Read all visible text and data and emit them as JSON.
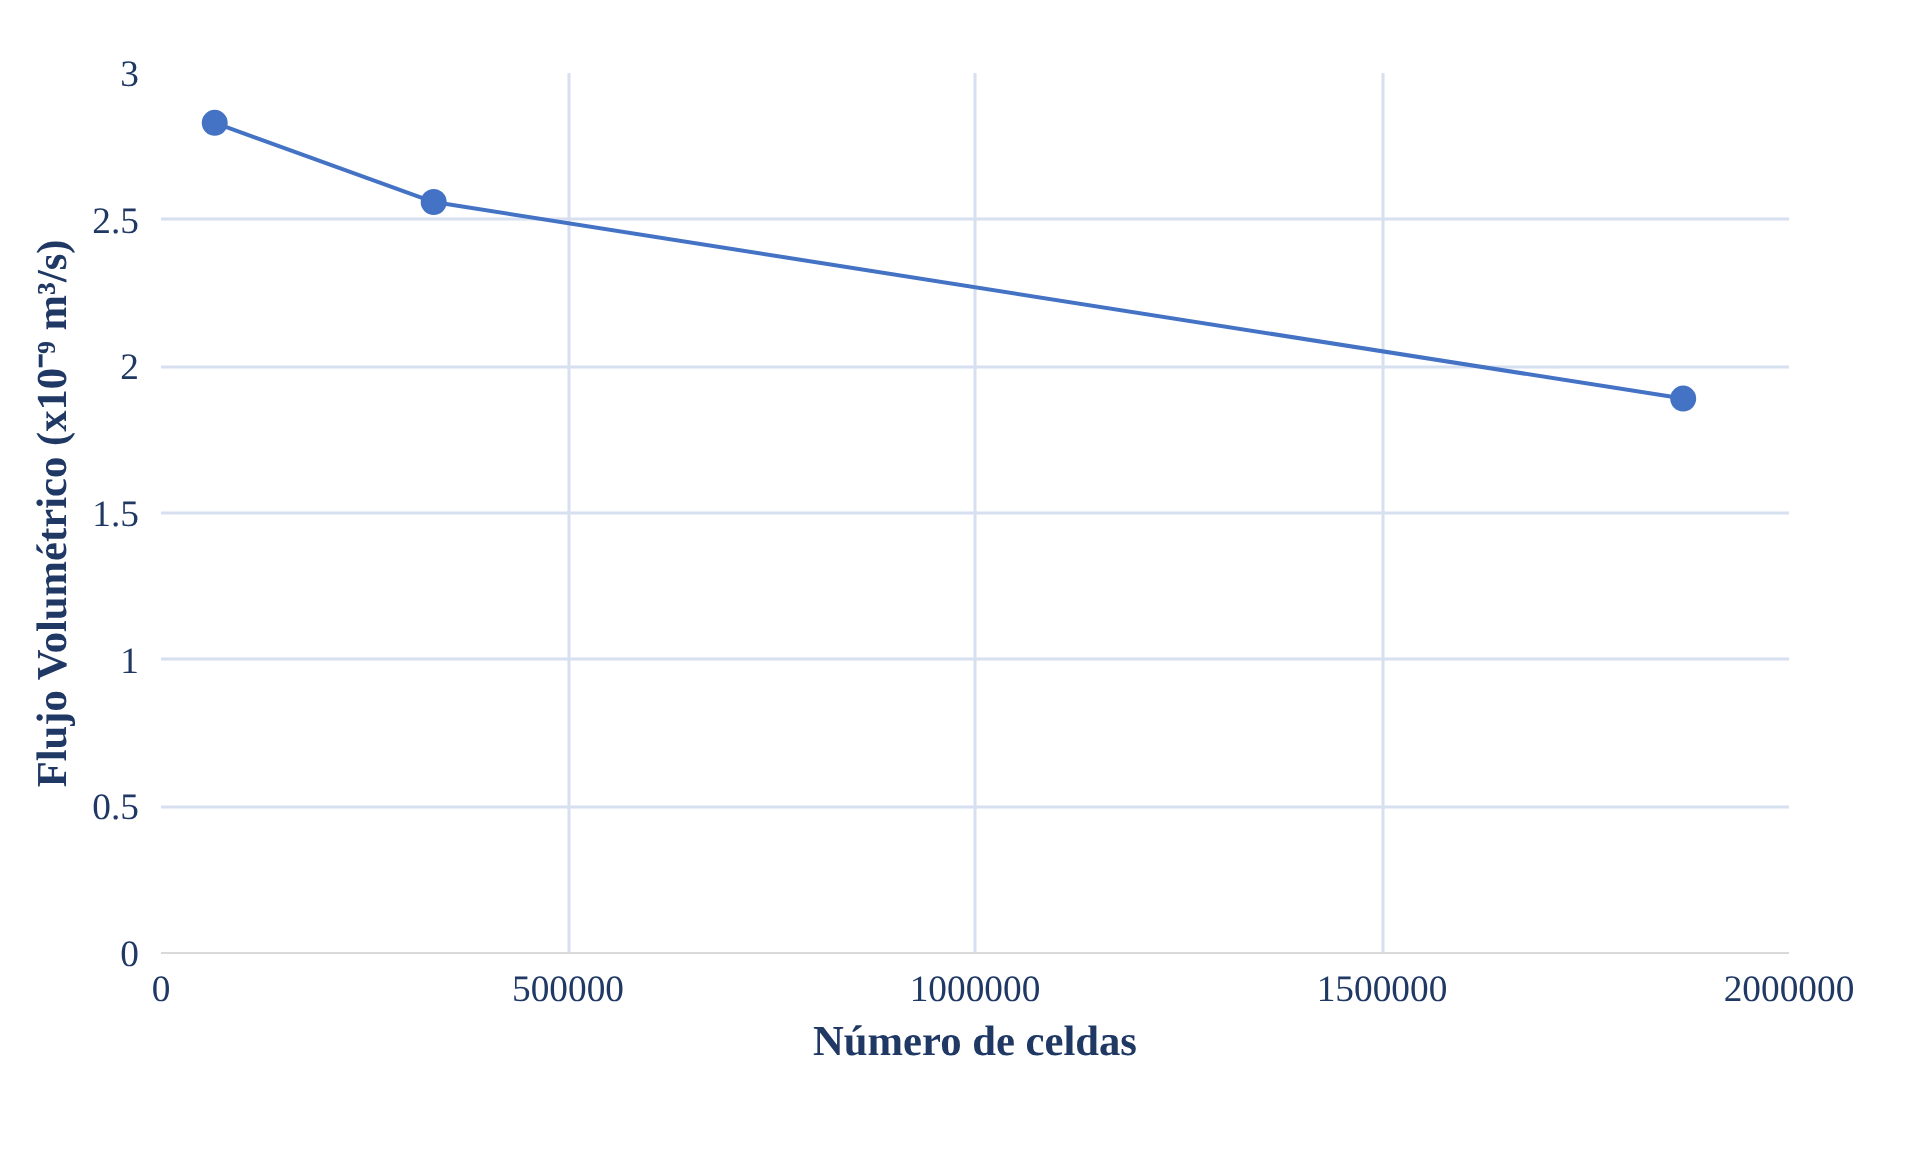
{
  "chart_data": {
    "type": "line",
    "xlabel": "Número de celdas",
    "ylabel": "Flujo Volumétrico (x10⁻⁹ m³/s)",
    "x": [
      66000,
      335000,
      1870000
    ],
    "series": [
      {
        "color": "#4472c4",
        "values": [
          2.83,
          2.56,
          1.89
        ]
      }
    ],
    "xlim": [
      0,
      2000000
    ],
    "xticks": [
      0,
      500000,
      1000000,
      1500000,
      2000000
    ],
    "ylim": [
      0,
      3
    ],
    "yticks": [
      0,
      0.5,
      1,
      1.5,
      2,
      2.5,
      3
    ],
    "grid": true,
    "marker": "circle",
    "line_style": "solid"
  }
}
